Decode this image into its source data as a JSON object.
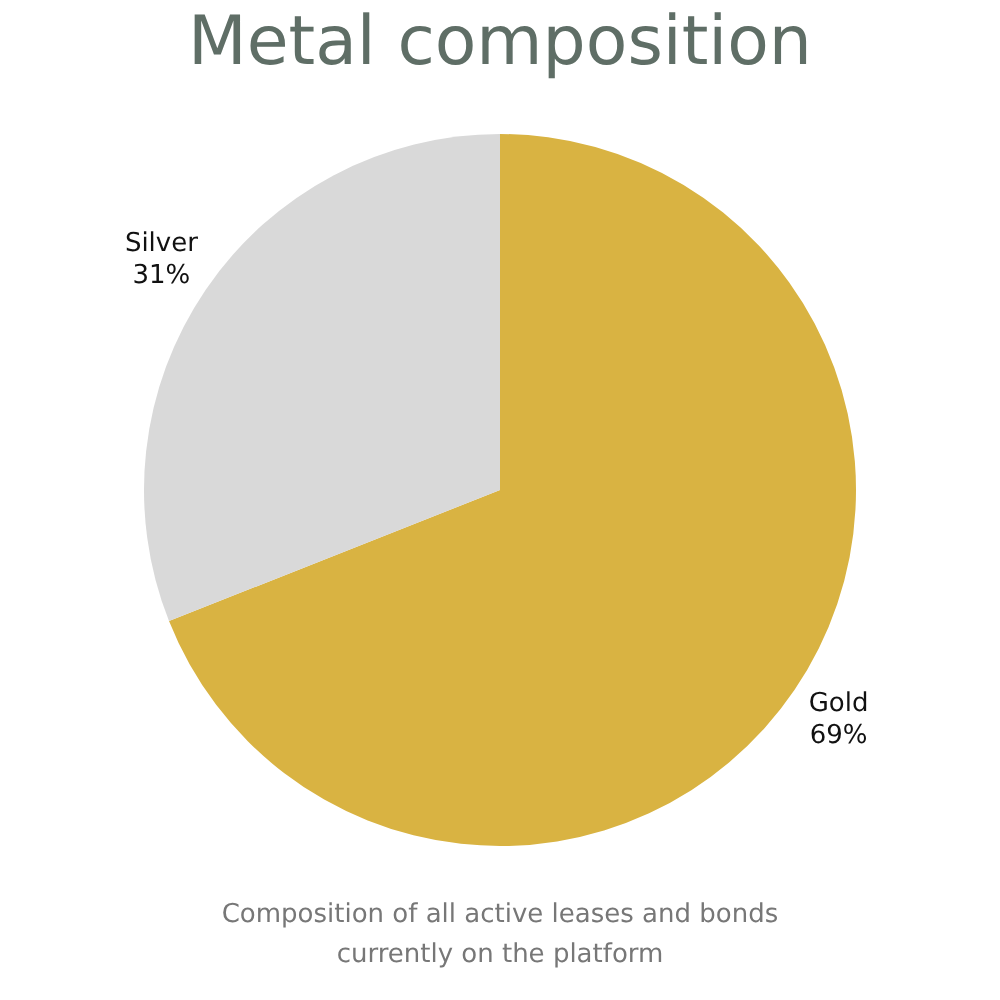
{
  "chart_data": {
    "type": "pie",
    "title": "Metal composition",
    "categories": [
      "Gold",
      "Silver"
    ],
    "values": [
      69,
      31
    ],
    "value_labels": [
      "69%",
      "31%"
    ],
    "colors": [
      "#d9b342",
      "#d9d9d9"
    ],
    "legend": false,
    "annotations": [
      "Composition of all active leases and bonds currently on the platform"
    ]
  }
}
